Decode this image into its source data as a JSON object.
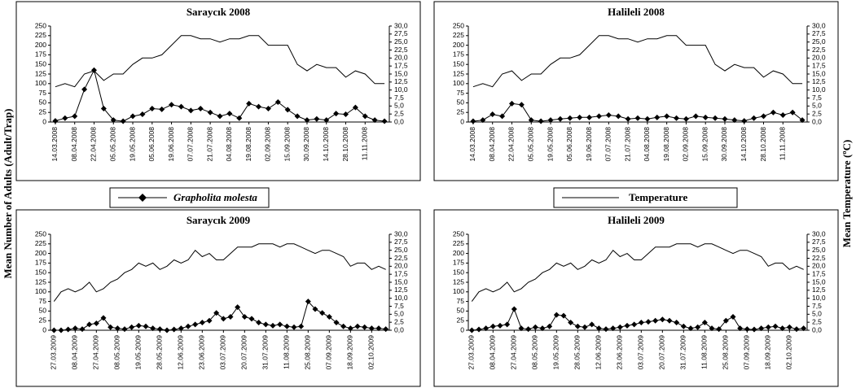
{
  "figure": {
    "ylabel": "Mean Number of Adults (Adult/Trap)",
    "y2label": "Mean Temperature (ºC)"
  },
  "chart_data": [
    {
      "type": "line",
      "title": "Saraycık 2008",
      "categories": [
        "14.03.2008",
        null,
        "08.04.2008",
        null,
        "22.04.2008",
        null,
        "05.05.2008",
        null,
        "19.05.2008",
        null,
        "05.06.2008",
        null,
        "19.06.2008",
        null,
        "07.07.2008",
        null,
        "21.07.2008",
        null,
        "04.08.2008",
        null,
        "19.08.2008",
        null,
        "02.09.2008",
        null,
        "15.09.2008",
        null,
        "30.09.2008",
        null,
        "14.10.2008",
        null,
        "28.10.2008",
        null,
        "11.11.2008",
        null,
        null
      ],
      "series": [
        {
          "name": "Grapholita molesta",
          "color": "#000000",
          "marker": "diamond",
          "values": [
            3,
            10,
            15,
            85,
            135,
            35,
            5,
            2,
            15,
            20,
            35,
            33,
            45,
            40,
            30,
            35,
            25,
            15,
            22,
            10,
            48,
            40,
            35,
            52,
            32,
            15,
            5,
            8,
            5,
            22,
            20,
            38,
            15,
            5,
            2
          ]
        },
        {
          "name": "Temperature",
          "color": "#000000",
          "axis": "y2",
          "values": [
            11,
            12,
            11,
            15,
            16,
            13,
            15,
            15,
            18,
            20,
            20,
            21,
            24,
            27,
            27,
            26,
            26,
            25,
            26,
            26,
            27,
            27,
            24,
            24,
            24,
            18,
            16,
            18,
            17,
            17,
            14,
            16,
            15,
            12,
            12
          ]
        }
      ],
      "ylim": [
        0,
        250
      ],
      "yticks": [
        0,
        25,
        50,
        75,
        100,
        125,
        150,
        175,
        200,
        225,
        250
      ],
      "y2lim": [
        0,
        30
      ],
      "y2ticks": [
        {
          "value": 0,
          "label": "0,0"
        },
        {
          "value": 2.5,
          "label": "2,5"
        },
        {
          "value": 5,
          "label": "5,0"
        },
        {
          "value": 7.5,
          "label": "7,5"
        },
        {
          "value": 10,
          "label": "10,0"
        },
        {
          "value": 12.5,
          "label": "12,5"
        },
        {
          "value": 15,
          "label": "15,0"
        },
        {
          "value": 17.5,
          "label": "17,5"
        },
        {
          "value": 20,
          "label": "20,0"
        },
        {
          "value": 22.5,
          "label": "22,5"
        },
        {
          "value": 25,
          "label": "25,0"
        },
        {
          "value": 27.5,
          "label": "27,5"
        },
        {
          "value": 30,
          "label": "30,0"
        }
      ]
    },
    {
      "type": "line",
      "title": "Halileli 2008",
      "categories": [
        "14.03.2008",
        null,
        "08.04.2008",
        null,
        "22.04.2008",
        null,
        "05.05.2008",
        null,
        "19.05.2008",
        null,
        "05.06.2008",
        null,
        "19.06.2008",
        null,
        "07.07.2008",
        null,
        "21.07.2008",
        null,
        "04.08.2008",
        null,
        "19.08.2008",
        null,
        "02.09.2008",
        null,
        "15.09.2008",
        null,
        "30.09.2008",
        null,
        "14.10.2008",
        null,
        "28.10.2008",
        null,
        "11.11.2008",
        null,
        null
      ],
      "series": [
        {
          "name": "Grapholita molesta",
          "color": "#000000",
          "marker": "diamond",
          "values": [
            2,
            5,
            20,
            15,
            48,
            45,
            5,
            2,
            5,
            8,
            10,
            12,
            12,
            15,
            18,
            15,
            8,
            10,
            8,
            12,
            15,
            10,
            8,
            15,
            12,
            10,
            8,
            5,
            3,
            10,
            15,
            25,
            18,
            25,
            5
          ]
        },
        {
          "name": "Temperature",
          "color": "#000000",
          "axis": "y2",
          "values": [
            11,
            12,
            11,
            15,
            16,
            13,
            15,
            15,
            18,
            20,
            20,
            21,
            24,
            27,
            27,
            26,
            26,
            25,
            26,
            26,
            27,
            27,
            24,
            24,
            24,
            18,
            16,
            18,
            17,
            17,
            14,
            16,
            15,
            12,
            12
          ]
        }
      ],
      "ylim": [
        0,
        250
      ],
      "yticks": [
        0,
        25,
        50,
        75,
        100,
        125,
        150,
        175,
        200,
        225,
        250
      ],
      "y2lim": [
        0,
        30
      ],
      "y2ticks": [
        {
          "value": 0,
          "label": "0,0"
        },
        {
          "value": 2.5,
          "label": "2,5"
        },
        {
          "value": 5,
          "label": "5,0"
        },
        {
          "value": 7.5,
          "label": "7,5"
        },
        {
          "value": 10,
          "label": "10,0"
        },
        {
          "value": 12.5,
          "label": "12,5"
        },
        {
          "value": 15,
          "label": "15,0"
        },
        {
          "value": 17.5,
          "label": "17,5"
        },
        {
          "value": 20,
          "label": "20,0"
        },
        {
          "value": 22.5,
          "label": "22,5"
        },
        {
          "value": 25,
          "label": "25,0"
        },
        {
          "value": 27.5,
          "label": "27,5"
        },
        {
          "value": 30,
          "label": "30,0"
        }
      ]
    },
    {
      "type": "line",
      "title": "Saraycık 2009",
      "categories": [
        "27.03.2009",
        null,
        null,
        "08.04.2009",
        null,
        null,
        "27.04.2009",
        null,
        null,
        "08.05.2009",
        null,
        null,
        "19.05.2009",
        null,
        null,
        "28.05.2009",
        null,
        null,
        "12.06.2009",
        null,
        null,
        "23.06.2009",
        null,
        null,
        "03.07.2009",
        null,
        null,
        "20.07.2009",
        null,
        null,
        "31.07.2009",
        null,
        null,
        "11.08.2009",
        null,
        null,
        "25.08.2009",
        null,
        null,
        "07.09.2009",
        null,
        null,
        "18.09.2009",
        null,
        null,
        "02.10.2009",
        null,
        null
      ],
      "series": [
        {
          "name": "Grapholita molesta",
          "color": "#000000",
          "marker": "diamond",
          "values": [
            0,
            0,
            2,
            5,
            3,
            15,
            18,
            32,
            8,
            5,
            3,
            8,
            12,
            10,
            5,
            3,
            0,
            2,
            5,
            10,
            15,
            20,
            25,
            45,
            30,
            35,
            60,
            35,
            30,
            20,
            15,
            12,
            15,
            10,
            8,
            10,
            75,
            55,
            45,
            35,
            20,
            10,
            5,
            10,
            8,
            5,
            5,
            3
          ]
        },
        {
          "name": "Temperature",
          "color": "#000000",
          "axis": "y2",
          "values": [
            9,
            12,
            13,
            12,
            13,
            15,
            12,
            13,
            15,
            16,
            18,
            19,
            21,
            20,
            21,
            19,
            20,
            22,
            21,
            22,
            25,
            23,
            24,
            22,
            22,
            24,
            26,
            26,
            26,
            27,
            27,
            27,
            26,
            27,
            27,
            26,
            25,
            24,
            25,
            25,
            24,
            23,
            20,
            21,
            21,
            19,
            20,
            19
          ]
        }
      ],
      "ylim": [
        0,
        250
      ],
      "yticks": [
        0,
        25,
        50,
        75,
        100,
        125,
        150,
        175,
        200,
        225,
        250
      ],
      "y2lim": [
        0,
        30
      ],
      "y2ticks": [
        {
          "value": 0,
          "label": "0,0"
        },
        {
          "value": 2.5,
          "label": "2,5"
        },
        {
          "value": 5,
          "label": "5,0"
        },
        {
          "value": 7.5,
          "label": "7,5"
        },
        {
          "value": 10,
          "label": "10,0"
        },
        {
          "value": 12.5,
          "label": "12,5"
        },
        {
          "value": 15,
          "label": "15,0"
        },
        {
          "value": 17.5,
          "label": "17,5"
        },
        {
          "value": 20,
          "label": "20,0"
        },
        {
          "value": 22.5,
          "label": "22,5"
        },
        {
          "value": 25,
          "label": "25,0"
        },
        {
          "value": 27.5,
          "label": "27,5"
        },
        {
          "value": 30,
          "label": "30,0"
        }
      ]
    },
    {
      "type": "line",
      "title": "Halileli 2009",
      "categories": [
        "27.03.2009",
        null,
        null,
        "08.04.2009",
        null,
        null,
        "27.04.2009",
        null,
        null,
        "08.05.2009",
        null,
        null,
        "19.05.2009",
        null,
        null,
        "28.05.2009",
        null,
        null,
        "12.06.2009",
        null,
        null,
        "23.06.2009",
        null,
        null,
        "03.07.2009",
        null,
        null,
        "20.07.2009",
        null,
        null,
        "31.07.2009",
        null,
        null,
        "11.08.2009",
        null,
        null,
        "25.08.2009",
        null,
        null,
        "07.09.2009",
        null,
        null,
        "18.09.2009",
        null,
        null,
        "02.10.2009",
        null,
        null
      ],
      "series": [
        {
          "name": "Grapholita molesta",
          "color": "#000000",
          "marker": "diamond",
          "values": [
            0,
            2,
            5,
            10,
            12,
            15,
            55,
            5,
            3,
            8,
            5,
            10,
            40,
            38,
            20,
            10,
            8,
            15,
            5,
            3,
            5,
            8,
            12,
            15,
            20,
            22,
            25,
            28,
            25,
            20,
            10,
            5,
            8,
            20,
            5,
            3,
            25,
            35,
            5,
            3,
            2,
            5,
            8,
            10,
            5,
            8,
            3,
            5
          ]
        },
        {
          "name": "Temperature",
          "color": "#000000",
          "axis": "y2",
          "values": [
            9,
            12,
            13,
            12,
            13,
            15,
            12,
            13,
            15,
            16,
            18,
            19,
            21,
            20,
            21,
            19,
            20,
            22,
            21,
            22,
            25,
            23,
            24,
            22,
            22,
            24,
            26,
            26,
            26,
            27,
            27,
            27,
            26,
            27,
            27,
            26,
            25,
            24,
            25,
            25,
            24,
            23,
            20,
            21,
            21,
            19,
            20,
            19
          ]
        }
      ],
      "ylim": [
        0,
        250
      ],
      "yticks": [
        0,
        25,
        50,
        75,
        100,
        125,
        150,
        175,
        200,
        225,
        250
      ],
      "y2lim": [
        0,
        30
      ],
      "y2ticks": [
        {
          "value": 0,
          "label": "0,0"
        },
        {
          "value": 2.5,
          "label": "2,5"
        },
        {
          "value": 5,
          "label": "5,0"
        },
        {
          "value": 7.5,
          "label": "7,5"
        },
        {
          "value": 10,
          "label": "10,0"
        },
        {
          "value": 12.5,
          "label": "12,5"
        },
        {
          "value": 15,
          "label": "15,0"
        },
        {
          "value": 17.5,
          "label": "17,5"
        },
        {
          "value": 20,
          "label": "20,0"
        },
        {
          "value": 22.5,
          "label": "22,5"
        },
        {
          "value": 25,
          "label": "25,0"
        },
        {
          "value": 27.5,
          "label": "27,5"
        },
        {
          "value": 30,
          "label": "30,0"
        }
      ]
    }
  ]
}
